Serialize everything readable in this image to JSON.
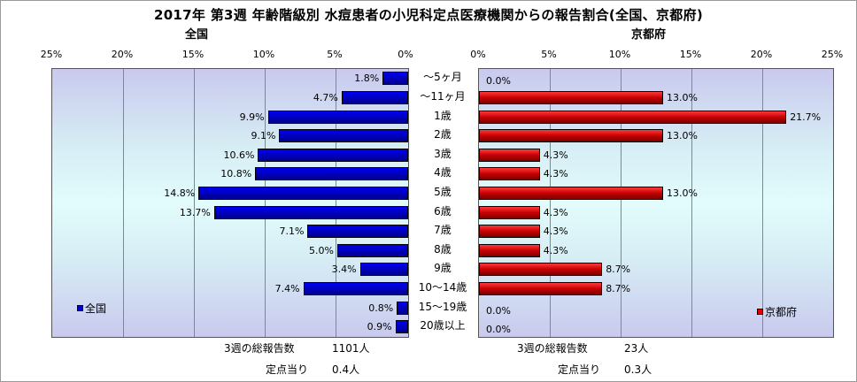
{
  "title": "2017年 第3週 年齢階級別 水痘患者の小児科定点医療機関からの報告割合(全国、京都府)",
  "chart_data": [
    {
      "type": "bar",
      "orientation": "horizontal",
      "direction": "right-to-left",
      "title": "全国",
      "series": [
        {
          "name": "全国",
          "values": [
            1.8,
            4.7,
            9.9,
            9.1,
            10.6,
            10.8,
            14.8,
            13.7,
            7.1,
            5.0,
            3.4,
            7.4,
            0.8,
            0.9
          ]
        }
      ],
      "value_labels": [
        "1.8%",
        "4.7%",
        "9.9%",
        "9.1%",
        "10.6%",
        "10.8%",
        "14.8%",
        "13.7%",
        "7.1%",
        "5.0%",
        "3.4%",
        "7.4%",
        "0.8%",
        "0.9%"
      ],
      "xlim": [
        0,
        25
      ],
      "ticks": [
        "25%",
        "20%",
        "15%",
        "10%",
        "5%",
        "0%"
      ],
      "color": "#0000c0",
      "grid": true,
      "legend": "bottom-left"
    },
    {
      "type": "bar",
      "orientation": "horizontal",
      "direction": "left-to-right",
      "title": "京都府",
      "series": [
        {
          "name": "京都府",
          "values": [
            0.0,
            13.0,
            21.7,
            13.0,
            4.3,
            4.3,
            13.0,
            4.3,
            4.3,
            4.3,
            8.7,
            8.7,
            0.0,
            0.0
          ]
        }
      ],
      "value_labels": [
        "0.0%",
        "13.0%",
        "21.7%",
        "13.0%",
        "4.3%",
        "4.3%",
        "13.0%",
        "4.3%",
        "4.3%",
        "4.3%",
        "8.7%",
        "8.7%",
        "0.0%",
        "0.0%"
      ],
      "xlim": [
        0,
        25
      ],
      "ticks": [
        "0%",
        "5%",
        "10%",
        "15%",
        "20%",
        "25%"
      ],
      "color": "#e00000",
      "grid": true,
      "legend": "bottom-right"
    }
  ],
  "categories": [
    "～5ヶ月",
    "～11ヶ月",
    "1歳",
    "2歳",
    "3歳",
    "4歳",
    "5歳",
    "6歳",
    "7歳",
    "8歳",
    "9歳",
    "10～14歳",
    "15～19歳",
    "20歳以上"
  ],
  "footer": {
    "zenkoku_total_label": "3週の総報告数",
    "zenkoku_total_value": "1101人",
    "zenkoku_per_label": "定点当り",
    "zenkoku_per_value": "0.4人",
    "kyoto_total_label": "3週の総報告数",
    "kyoto_total_value": "23人",
    "kyoto_per_label": "定点当り",
    "kyoto_per_value": "0.3人"
  }
}
